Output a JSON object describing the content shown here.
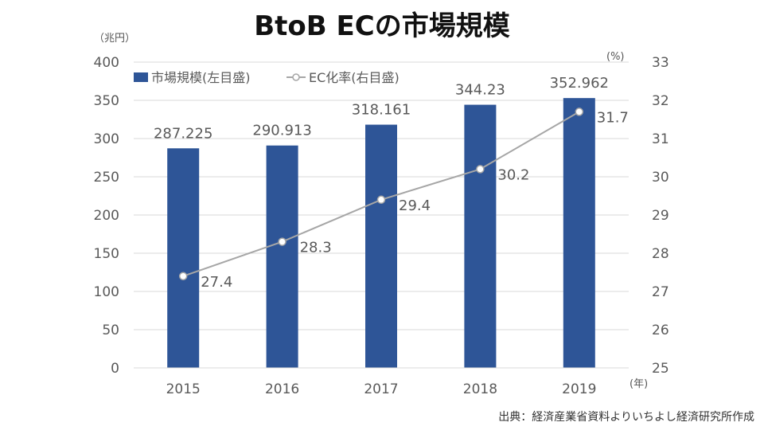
{
  "title": "BtoB ECの市場規模",
  "left_axis_unit": "（兆円）",
  "right_axis_unit": "(%)",
  "x_axis_unit": "(年)",
  "source": "出典：経済産業省資料よりいちよし経済研究所作成",
  "colors": {
    "bar": "#2E5597",
    "line": "#A6A6A6",
    "grid": "#D9D9D9"
  },
  "chart_data": {
    "type": "bar+line",
    "categories": [
      "2015",
      "2016",
      "2017",
      "2018",
      "2019"
    ],
    "series": [
      {
        "name": "市場規模(左目盛)",
        "type": "bar",
        "axis": "left",
        "values": [
          287.225,
          290.913,
          318.161,
          344.23,
          352.962
        ],
        "labels": [
          "287.225",
          "290.913",
          "318.161",
          "344.23",
          "352.962"
        ]
      },
      {
        "name": "EC化率(右目盛)",
        "type": "line",
        "axis": "right",
        "values": [
          27.4,
          28.3,
          29.4,
          30.2,
          31.7
        ],
        "labels": [
          "27.4",
          "28.3",
          "29.4",
          "30.2",
          "31.7"
        ]
      }
    ],
    "left_ylim": [
      0,
      400
    ],
    "left_ticks": [
      "0",
      "50",
      "100",
      "150",
      "200",
      "250",
      "300",
      "350",
      "400"
    ],
    "right_ylim": [
      25,
      33
    ],
    "right_ticks": [
      "25",
      "26",
      "27",
      "28",
      "29",
      "30",
      "31",
      "32",
      "33"
    ],
    "grid": true,
    "legend": "top-left"
  }
}
